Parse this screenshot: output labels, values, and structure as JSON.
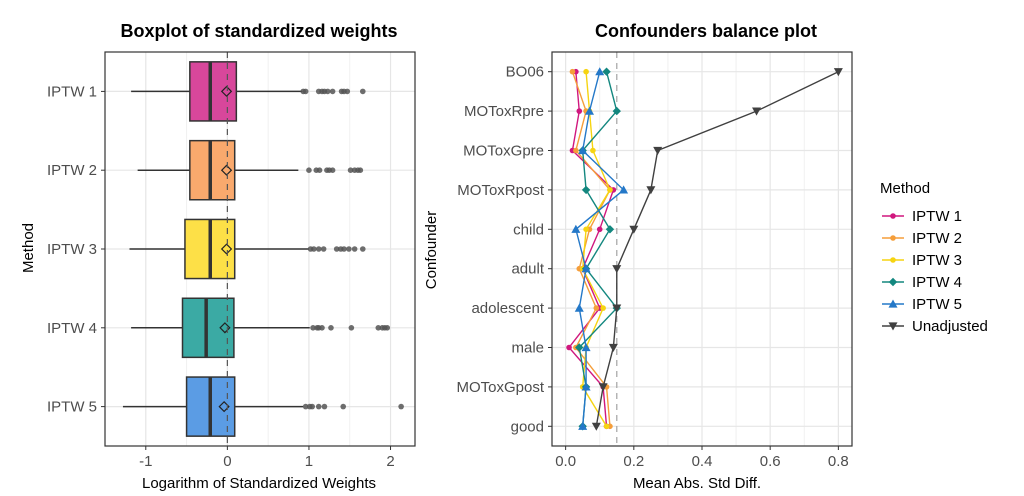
{
  "chart_data": [
    {
      "type": "boxplot",
      "title": "Boxplot of standardized weights",
      "xlabel": "Logarithm of Standardized Weights",
      "ylabel": "Method",
      "xlim": [
        -1.5,
        2.3
      ],
      "xticks": [
        -1,
        0,
        1,
        2
      ],
      "xtick_labels": [
        "-1",
        "0",
        "1",
        "2"
      ],
      "reference_line_x": 0,
      "categories": [
        "IPTW 1",
        "IPTW 2",
        "IPTW 3",
        "IPTW 4",
        "IPTW 5"
      ],
      "boxes": [
        {
          "label": "IPTW 1",
          "color": "#D8479B",
          "whisker_low": -1.18,
          "q1": -0.46,
          "median": -0.21,
          "q3": 0.11,
          "whisker_high": 0.92,
          "mean": -0.01,
          "outliers": [
            0.93,
            0.96,
            1.12,
            1.16,
            1.19,
            1.23,
            1.29,
            1.4,
            1.43,
            1.47,
            1.66
          ]
        },
        {
          "label": "IPTW 2",
          "color": "#F9A96D",
          "whisker_low": -1.1,
          "q1": -0.46,
          "median": -0.21,
          "q3": 0.09,
          "whisker_high": 0.87,
          "mean": -0.01,
          "outliers": [
            1.0,
            1.09,
            1.13,
            1.22,
            1.25,
            1.29,
            1.51,
            1.56,
            1.6,
            1.63
          ]
        },
        {
          "label": "IPTW 3",
          "color": "#FDE047",
          "whisker_low": -1.2,
          "q1": -0.52,
          "median": -0.21,
          "q3": 0.09,
          "whisker_high": 1.0,
          "mean": -0.01,
          "outliers": [
            1.02,
            1.06,
            1.12,
            1.18,
            1.34,
            1.39,
            1.43,
            1.49,
            1.56,
            1.66
          ]
        },
        {
          "label": "IPTW 4",
          "color": "#3BAAA4",
          "whisker_low": -1.18,
          "q1": -0.55,
          "median": -0.26,
          "q3": 0.08,
          "whisker_high": 1.01,
          "mean": -0.03,
          "outliers": [
            1.05,
            1.1,
            1.12,
            1.16,
            1.27,
            1.52,
            1.85,
            1.9,
            1.93,
            1.96
          ]
        },
        {
          "label": "IPTW 5",
          "color": "#5B9CE4",
          "whisker_low": -1.28,
          "q1": -0.5,
          "median": -0.21,
          "q3": 0.09,
          "whisker_high": 0.93,
          "mean": -0.04,
          "outliers": [
            0.96,
            1.01,
            1.04,
            1.12,
            1.19,
            1.42,
            2.13
          ]
        }
      ]
    },
    {
      "type": "line",
      "title": "Confounders balance plot",
      "xlabel": "Mean Abs. Std Diff.",
      "ylabel": "Confounder",
      "xlim": [
        -0.04,
        0.84
      ],
      "xticks": [
        0.0,
        0.2,
        0.4,
        0.6,
        0.8
      ],
      "xtick_labels": [
        "0.0",
        "0.2",
        "0.4",
        "0.6",
        "0.8"
      ],
      "threshold_x": 0.15,
      "categories": [
        "BO06",
        "MOToxRpre",
        "MOToxGpre",
        "MOToxRpost",
        "child",
        "adult",
        "adolescent",
        "male",
        "MOToxGpost",
        "good"
      ],
      "series": [
        {
          "name": "IPTW 1",
          "color": "#D0177E",
          "marker": "dot",
          "values": [
            0.03,
            0.04,
            0.02,
            0.14,
            0.1,
            0.05,
            0.1,
            0.01,
            0.11,
            0.12
          ]
        },
        {
          "name": "IPTW 2",
          "color": "#F59E3A",
          "marker": "dot",
          "values": [
            0.02,
            0.06,
            0.03,
            0.13,
            0.07,
            0.04,
            0.09,
            0.03,
            0.12,
            0.13
          ]
        },
        {
          "name": "IPTW 3",
          "color": "#F6D411",
          "marker": "dot",
          "values": [
            0.06,
            0.07,
            0.08,
            0.13,
            0.06,
            0.05,
            0.11,
            0.06,
            0.05,
            0.12
          ]
        },
        {
          "name": "IPTW 4",
          "color": "#13877F",
          "marker": "diamond",
          "values": [
            0.12,
            0.15,
            0.05,
            0.06,
            0.13,
            0.06,
            0.15,
            0.04,
            0.06,
            0.05
          ]
        },
        {
          "name": "IPTW 5",
          "color": "#2478C8",
          "marker": "triangle",
          "values": [
            0.1,
            0.07,
            0.05,
            0.17,
            0.03,
            0.06,
            0.04,
            0.06,
            0.06,
            0.05
          ]
        },
        {
          "name": "Unadjusted",
          "color": "#404040",
          "marker": "triangle-down",
          "values": [
            0.8,
            0.56,
            0.27,
            0.25,
            0.2,
            0.15,
            0.15,
            0.14,
            0.11,
            0.09
          ]
        }
      ]
    }
  ],
  "legend": {
    "title": "Method",
    "items": [
      "IPTW 1",
      "IPTW 2",
      "IPTW 3",
      "IPTW 4",
      "IPTW 5",
      "Unadjusted"
    ]
  }
}
